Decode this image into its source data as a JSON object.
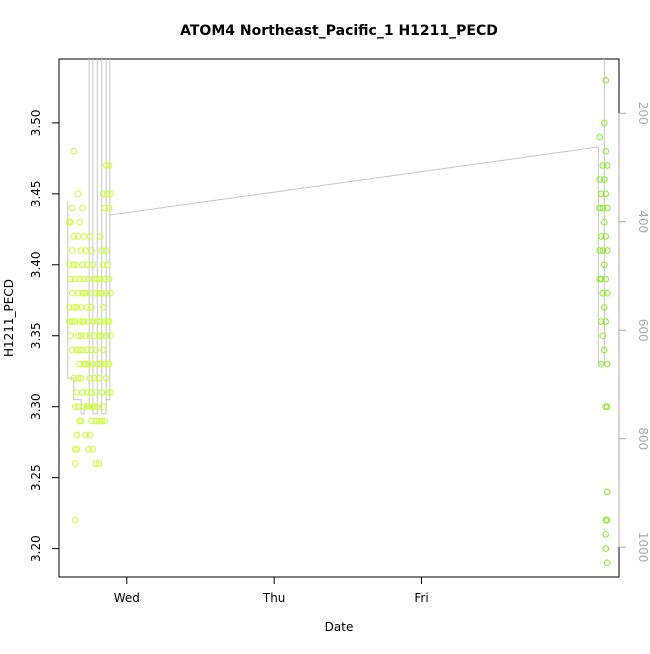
{
  "chart_data": {
    "type": "scatter",
    "title": "ATOM4 Northeast_Pacific_1 H1211_PECD",
    "xlabel": "Date",
    "ylabel": "H1211_PECD",
    "x_ticks": [
      "Wed",
      "Thu",
      "Fri"
    ],
    "x_unit": "days since Tue 00:00",
    "xlim": [
      0.54,
      4.34
    ],
    "ylim": [
      3.18,
      3.545
    ],
    "y_ticks": [
      "3.20",
      "3.25",
      "3.30",
      "3.35",
      "3.40",
      "3.45",
      "3.50"
    ],
    "y2_label": "",
    "y2_ticks": [
      "200",
      "400",
      "600",
      "800",
      "1000"
    ],
    "y2lim": [
      1055,
      100
    ],
    "point_colors": {
      "early": "#ccff33",
      "late": "#88ee22"
    },
    "line_color": "#c8c8c8",
    "series": [
      {
        "name": "H1211_PECD",
        "points": [
          [
            0.61,
            3.43
          ],
          [
            0.61,
            3.4
          ],
          [
            0.61,
            3.37
          ],
          [
            0.61,
            3.36
          ],
          [
            0.62,
            3.43
          ],
          [
            0.62,
            3.39
          ],
          [
            0.62,
            3.35
          ],
          [
            0.63,
            3.44
          ],
          [
            0.63,
            3.41
          ],
          [
            0.63,
            3.38
          ],
          [
            0.63,
            3.36
          ],
          [
            0.63,
            3.34
          ],
          [
            0.64,
            3.48
          ],
          [
            0.64,
            3.42
          ],
          [
            0.64,
            3.4
          ],
          [
            0.64,
            3.37
          ],
          [
            0.64,
            3.32
          ],
          [
            0.65,
            3.39
          ],
          [
            0.65,
            3.36
          ],
          [
            0.65,
            3.3
          ],
          [
            0.65,
            3.27
          ],
          [
            0.65,
            3.26
          ],
          [
            0.65,
            3.22
          ],
          [
            0.66,
            3.4
          ],
          [
            0.66,
            3.37
          ],
          [
            0.66,
            3.34
          ],
          [
            0.66,
            3.31
          ],
          [
            0.66,
            3.28
          ],
          [
            0.66,
            3.27
          ],
          [
            0.67,
            3.45
          ],
          [
            0.67,
            3.42
          ],
          [
            0.67,
            3.38
          ],
          [
            0.67,
            3.35
          ],
          [
            0.67,
            3.32
          ],
          [
            0.67,
            3.3
          ],
          [
            0.68,
            3.43
          ],
          [
            0.68,
            3.39
          ],
          [
            0.68,
            3.36
          ],
          [
            0.68,
            3.34
          ],
          [
            0.68,
            3.33
          ],
          [
            0.68,
            3.29
          ],
          [
            0.69,
            3.41
          ],
          [
            0.69,
            3.37
          ],
          [
            0.69,
            3.35
          ],
          [
            0.69,
            3.32
          ],
          [
            0.69,
            3.29
          ],
          [
            0.7,
            3.44
          ],
          [
            0.7,
            3.4
          ],
          [
            0.7,
            3.38
          ],
          [
            0.7,
            3.36
          ],
          [
            0.7,
            3.34
          ],
          [
            0.7,
            3.31
          ],
          [
            0.71,
            3.42
          ],
          [
            0.71,
            3.39
          ],
          [
            0.71,
            3.36
          ],
          [
            0.71,
            3.33
          ],
          [
            0.71,
            3.3
          ],
          [
            0.72,
            3.41
          ],
          [
            0.72,
            3.38
          ],
          [
            0.72,
            3.35
          ],
          [
            0.72,
            3.33
          ],
          [
            0.72,
            3.28
          ],
          [
            0.73,
            3.4
          ],
          [
            0.73,
            3.37
          ],
          [
            0.73,
            3.34
          ],
          [
            0.73,
            3.31
          ],
          [
            0.73,
            3.3
          ],
          [
            0.74,
            3.39
          ],
          [
            0.74,
            3.36
          ],
          [
            0.74,
            3.33
          ],
          [
            0.74,
            3.3
          ],
          [
            0.74,
            3.27
          ],
          [
            0.75,
            3.42
          ],
          [
            0.75,
            3.38
          ],
          [
            0.75,
            3.35
          ],
          [
            0.75,
            3.32
          ],
          [
            0.75,
            3.28
          ],
          [
            0.76,
            3.41
          ],
          [
            0.76,
            3.37
          ],
          [
            0.76,
            3.34
          ],
          [
            0.76,
            3.31
          ],
          [
            0.76,
            3.29
          ],
          [
            0.77,
            3.4
          ],
          [
            0.77,
            3.36
          ],
          [
            0.77,
            3.33
          ],
          [
            0.77,
            3.3
          ],
          [
            0.77,
            3.27
          ],
          [
            0.78,
            3.39
          ],
          [
            0.78,
            3.35
          ],
          [
            0.78,
            3.32
          ],
          [
            0.78,
            3.3
          ],
          [
            0.79,
            3.38
          ],
          [
            0.79,
            3.34
          ],
          [
            0.79,
            3.31
          ],
          [
            0.79,
            3.29
          ],
          [
            0.79,
            3.26
          ],
          [
            0.8,
            3.39
          ],
          [
            0.8,
            3.36
          ],
          [
            0.8,
            3.33
          ],
          [
            0.8,
            3.3
          ],
          [
            0.81,
            3.38
          ],
          [
            0.81,
            3.35
          ],
          [
            0.81,
            3.32
          ],
          [
            0.81,
            3.29
          ],
          [
            0.81,
            3.26
          ],
          [
            0.82,
            3.42
          ],
          [
            0.82,
            3.39
          ],
          [
            0.82,
            3.36
          ],
          [
            0.82,
            3.33
          ],
          [
            0.83,
            3.41
          ],
          [
            0.83,
            3.38
          ],
          [
            0.83,
            3.35
          ],
          [
            0.83,
            3.31
          ],
          [
            0.83,
            3.29
          ],
          [
            0.84,
            3.45
          ],
          [
            0.84,
            3.4
          ],
          [
            0.84,
            3.37
          ],
          [
            0.84,
            3.34
          ],
          [
            0.84,
            3.3
          ],
          [
            0.85,
            3.44
          ],
          [
            0.85,
            3.39
          ],
          [
            0.85,
            3.36
          ],
          [
            0.85,
            3.33
          ],
          [
            0.85,
            3.29
          ],
          [
            0.86,
            3.47
          ],
          [
            0.86,
            3.41
          ],
          [
            0.86,
            3.38
          ],
          [
            0.86,
            3.35
          ],
          [
            0.86,
            3.32
          ],
          [
            0.87,
            3.45
          ],
          [
            0.87,
            3.4
          ],
          [
            0.87,
            3.36
          ],
          [
            0.87,
            3.33
          ],
          [
            0.87,
            3.31
          ],
          [
            0.88,
            3.47
          ],
          [
            0.88,
            3.44
          ],
          [
            0.88,
            3.39
          ],
          [
            0.88,
            3.36
          ],
          [
            0.88,
            3.33
          ],
          [
            0.89,
            3.45
          ],
          [
            0.89,
            3.38
          ],
          [
            0.89,
            3.35
          ],
          [
            0.89,
            3.31
          ],
          [
            4.21,
            3.49
          ],
          [
            4.21,
            3.46
          ],
          [
            4.21,
            3.44
          ],
          [
            4.21,
            3.41
          ],
          [
            4.21,
            3.39
          ],
          [
            4.22,
            3.45
          ],
          [
            4.22,
            3.42
          ],
          [
            4.22,
            3.39
          ],
          [
            4.22,
            3.36
          ],
          [
            4.22,
            3.33
          ],
          [
            4.23,
            3.47
          ],
          [
            4.23,
            3.44
          ],
          [
            4.23,
            3.41
          ],
          [
            4.23,
            3.38
          ],
          [
            4.23,
            3.35
          ],
          [
            4.24,
            3.5
          ],
          [
            4.24,
            3.46
          ],
          [
            4.24,
            3.43
          ],
          [
            4.24,
            3.4
          ],
          [
            4.24,
            3.37
          ],
          [
            4.24,
            3.34
          ],
          [
            4.25,
            3.53
          ],
          [
            4.25,
            3.48
          ],
          [
            4.25,
            3.45
          ],
          [
            4.25,
            3.42
          ],
          [
            4.25,
            3.39
          ],
          [
            4.25,
            3.36
          ],
          [
            4.25,
            3.3
          ],
          [
            4.25,
            3.22
          ],
          [
            4.25,
            3.21
          ],
          [
            4.25,
            3.2
          ],
          [
            4.26,
            3.47
          ],
          [
            4.26,
            3.44
          ],
          [
            4.26,
            3.41
          ],
          [
            4.26,
            3.38
          ],
          [
            4.26,
            3.33
          ],
          [
            4.26,
            3.3
          ],
          [
            4.26,
            3.24
          ],
          [
            4.26,
            3.22
          ],
          [
            4.26,
            3.19
          ]
        ]
      }
    ],
    "profile_line": [
      [
        0.6,
        3.445
      ],
      [
        0.6,
        3.32
      ],
      [
        0.64,
        3.32
      ],
      [
        0.64,
        3.305
      ],
      [
        0.69,
        3.305
      ],
      [
        0.69,
        3.295
      ],
      [
        0.71,
        3.295
      ],
      [
        0.71,
        3.3
      ],
      [
        0.745,
        3.3
      ],
      [
        0.745,
        3.545
      ],
      [
        0.745,
        3.3
      ],
      [
        0.77,
        3.3
      ],
      [
        0.77,
        3.545
      ],
      [
        0.77,
        3.295
      ],
      [
        0.8,
        3.295
      ],
      [
        0.8,
        3.545
      ],
      [
        0.8,
        3.3
      ],
      [
        0.83,
        3.3
      ],
      [
        0.83,
        3.545
      ],
      [
        0.83,
        3.295
      ],
      [
        0.86,
        3.295
      ],
      [
        0.86,
        3.545
      ],
      [
        0.86,
        3.305
      ],
      [
        0.885,
        3.305
      ],
      [
        0.885,
        3.545
      ],
      [
        0.885,
        3.435
      ],
      [
        0.88,
        3.435
      ],
      [
        4.2,
        3.483
      ],
      [
        4.2,
        3.33
      ],
      [
        4.24,
        3.33
      ],
      [
        4.24,
        3.545
      ]
    ]
  }
}
